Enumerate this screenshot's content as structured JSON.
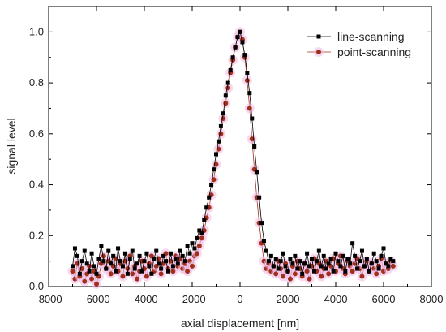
{
  "chart_data": {
    "type": "scatter",
    "xlabel": "axial displacement [nm]",
    "ylabel": "signal level",
    "xlim": [
      -8000,
      8000
    ],
    "ylim": [
      0.0,
      1.1
    ],
    "x_ticks": [
      "-8000",
      "-6000",
      "-4000",
      "-2000",
      "0",
      "2000",
      "4000",
      "6000",
      "8000"
    ],
    "y_ticks": [
      "0.0",
      "0.2",
      "0.4",
      "0.6",
      "0.8",
      "1.0"
    ],
    "legend_position": "top-right",
    "series": [
      {
        "name": "line-scanning",
        "color": "#000000",
        "marker": "square",
        "x": [
          -7000,
          -6900,
          -6800,
          -6700,
          -6600,
          -6500,
          -6400,
          -6300,
          -6200,
          -6100,
          -6000,
          -5900,
          -5800,
          -5700,
          -5600,
          -5500,
          -5400,
          -5300,
          -5200,
          -5100,
          -5000,
          -4900,
          -4800,
          -4700,
          -4600,
          -4500,
          -4400,
          -4300,
          -4200,
          -4100,
          -4000,
          -3900,
          -3800,
          -3700,
          -3600,
          -3500,
          -3400,
          -3300,
          -3200,
          -3100,
          -3000,
          -2900,
          -2800,
          -2700,
          -2600,
          -2500,
          -2400,
          -2300,
          -2200,
          -2100,
          -2000,
          -1900,
          -1800,
          -1700,
          -1600,
          -1500,
          -1400,
          -1300,
          -1200,
          -1100,
          -1000,
          -900,
          -800,
          -700,
          -600,
          -500,
          -400,
          -300,
          -200,
          -100,
          0,
          100,
          200,
          300,
          400,
          500,
          600,
          700,
          800,
          900,
          1000,
          1100,
          1200,
          1300,
          1400,
          1500,
          1600,
          1700,
          1800,
          1900,
          2000,
          2100,
          2200,
          2300,
          2400,
          2500,
          2600,
          2700,
          2800,
          2900,
          3000,
          3100,
          3200,
          3300,
          3400,
          3500,
          3600,
          3700,
          3800,
          3900,
          4000,
          4100,
          4200,
          4300,
          4400,
          4500,
          4600,
          4700,
          4800,
          4900,
          5000,
          5100,
          5200,
          5300,
          5400,
          5500,
          5600,
          5700,
          5800,
          5900,
          6000,
          6100,
          6200,
          6300,
          6400
        ],
        "y": [
          0.08,
          0.15,
          0.12,
          0.05,
          0.1,
          0.14,
          0.09,
          0.06,
          0.13,
          0.08,
          0.05,
          0.11,
          0.16,
          0.1,
          0.07,
          0.14,
          0.09,
          0.12,
          0.06,
          0.15,
          0.1,
          0.08,
          0.13,
          0.05,
          0.11,
          0.14,
          0.07,
          0.09,
          0.12,
          0.06,
          0.1,
          0.13,
          0.08,
          0.05,
          0.11,
          0.14,
          0.09,
          0.07,
          0.12,
          0.1,
          0.06,
          0.13,
          0.08,
          0.11,
          0.09,
          0.14,
          0.12,
          0.1,
          0.16,
          0.13,
          0.17,
          0.15,
          0.19,
          0.22,
          0.21,
          0.26,
          0.31,
          0.35,
          0.4,
          0.46,
          0.52,
          0.57,
          0.63,
          0.68,
          0.75,
          0.8,
          0.85,
          0.9,
          0.94,
          0.98,
          1.0,
          0.96,
          0.91,
          0.84,
          0.76,
          0.66,
          0.55,
          0.45,
          0.35,
          0.25,
          0.18,
          0.14,
          0.1,
          0.12,
          0.08,
          0.11,
          0.07,
          0.1,
          0.13,
          0.08,
          0.06,
          0.11,
          0.09,
          0.12,
          0.07,
          0.1,
          0.05,
          0.09,
          0.13,
          0.08,
          0.11,
          0.06,
          0.1,
          0.14,
          0.08,
          0.12,
          0.07,
          0.09,
          0.11,
          0.06,
          0.13,
          0.1,
          0.08,
          0.12,
          0.06,
          0.11,
          0.09,
          0.17,
          0.12,
          0.07,
          0.1,
          0.14,
          0.08,
          0.11,
          0.06,
          0.09,
          0.13,
          0.1,
          0.07,
          0.12,
          0.15,
          0.09,
          0.08,
          0.11,
          0.1
        ]
      },
      {
        "name": "point-scanning",
        "color": "#a0301c",
        "marker": "circle",
        "x": [
          -7000,
          -6900,
          -6800,
          -6700,
          -6600,
          -6500,
          -6400,
          -6300,
          -6200,
          -6100,
          -6000,
          -5900,
          -5800,
          -5700,
          -5600,
          -5500,
          -5400,
          -5300,
          -5200,
          -5100,
          -5000,
          -4900,
          -4800,
          -4700,
          -4600,
          -4500,
          -4400,
          -4300,
          -4200,
          -4100,
          -4000,
          -3900,
          -3800,
          -3700,
          -3600,
          -3500,
          -3400,
          -3300,
          -3200,
          -3100,
          -3000,
          -2900,
          -2800,
          -2700,
          -2600,
          -2500,
          -2400,
          -2300,
          -2200,
          -2100,
          -2000,
          -1900,
          -1800,
          -1700,
          -1600,
          -1500,
          -1400,
          -1300,
          -1200,
          -1100,
          -1000,
          -900,
          -800,
          -700,
          -600,
          -500,
          -400,
          -300,
          -200,
          -100,
          0,
          100,
          200,
          300,
          400,
          500,
          600,
          700,
          800,
          900,
          1000,
          1100,
          1200,
          1300,
          1400,
          1500,
          1600,
          1700,
          1800,
          1900,
          2000,
          2100,
          2200,
          2300,
          2400,
          2500,
          2600,
          2700,
          2800,
          2900,
          3000,
          3100,
          3200,
          3300,
          3400,
          3500,
          3600,
          3700,
          3800,
          3900,
          4000,
          4100,
          4200,
          4300,
          4400,
          4500,
          4600,
          4700,
          4800,
          4900,
          5000,
          5100,
          5200,
          5300,
          5400,
          5500,
          5600,
          5700,
          5800,
          5900,
          6000,
          6100,
          6200,
          6300,
          6400
        ],
        "y": [
          0.06,
          0.03,
          0.09,
          0.04,
          0.07,
          0.02,
          0.05,
          0.08,
          0.03,
          0.06,
          0.01,
          0.04,
          0.09,
          0.12,
          0.07,
          0.1,
          0.05,
          0.08,
          0.11,
          0.06,
          0.09,
          0.04,
          0.1,
          0.07,
          0.12,
          0.05,
          0.08,
          0.03,
          0.06,
          0.1,
          0.07,
          0.04,
          0.09,
          0.12,
          0.06,
          0.08,
          0.11,
          0.05,
          0.09,
          0.13,
          0.07,
          0.1,
          0.06,
          0.12,
          0.08,
          0.11,
          0.07,
          0.09,
          0.06,
          0.1,
          0.08,
          0.12,
          0.13,
          0.16,
          0.19,
          0.22,
          0.27,
          0.31,
          0.36,
          0.42,
          0.48,
          0.54,
          0.6,
          0.66,
          0.72,
          0.78,
          0.84,
          0.89,
          0.94,
          0.98,
          1.0,
          0.97,
          0.9,
          0.81,
          0.7,
          0.58,
          0.46,
          0.35,
          0.25,
          0.17,
          0.1,
          0.07,
          0.09,
          0.06,
          0.08,
          0.05,
          0.1,
          0.07,
          0.04,
          0.09,
          0.06,
          0.03,
          0.08,
          0.05,
          0.1,
          0.07,
          0.04,
          0.09,
          0.06,
          0.03,
          0.08,
          0.11,
          0.06,
          0.09,
          0.04,
          0.07,
          0.1,
          0.05,
          0.08,
          0.11,
          0.06,
          0.09,
          0.12,
          0.07,
          0.05,
          0.1,
          0.08,
          0.06,
          0.09,
          0.11,
          0.07,
          0.04,
          0.08,
          0.1,
          0.06,
          0.09,
          0.07,
          0.05,
          0.08,
          0.11,
          0.06,
          0.09,
          0.07,
          0.1,
          0.08
        ]
      }
    ]
  }
}
